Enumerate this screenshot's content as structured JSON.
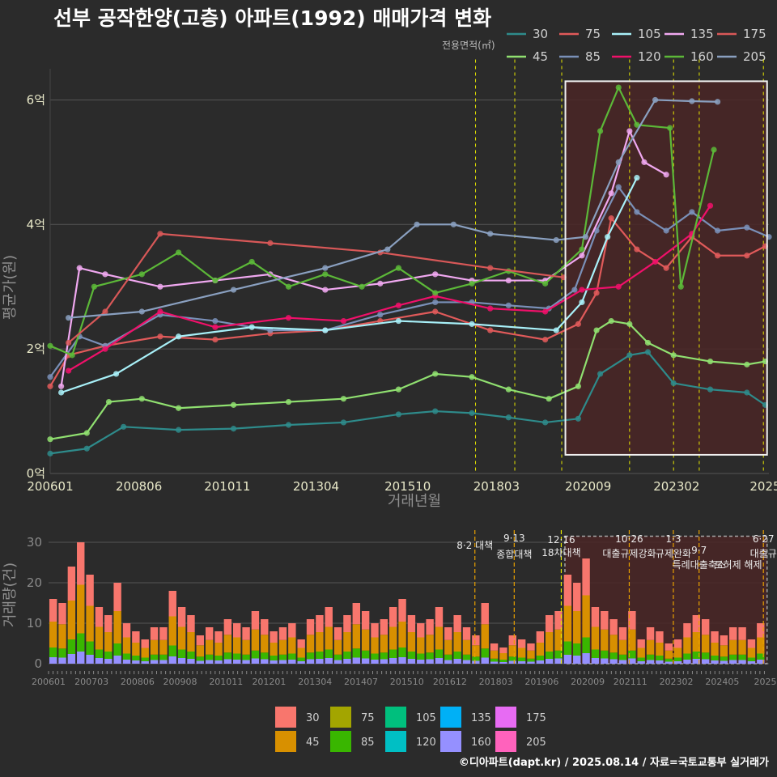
{
  "title": "선부 공작한양(고층) 아파트(1992) 매매가격 변화",
  "footer": "©디아파트(dapt.kr) / 2025.08.14 / 자료=국토교통부 실거래가",
  "chart_data": [
    {
      "type": "line",
      "title": "선부 공작한양(고층) 아파트(1992) 매매가격 변화",
      "xlabel": "거래년월",
      "ylabel": "평균가(원)",
      "ylim": [
        0,
        6.5
      ],
      "xlim": [
        2006.0,
        2025.6
      ],
      "x_tick_labels": [
        "200601",
        "200806",
        "201011",
        "201304",
        "201510",
        "201803",
        "202009",
        "202302",
        "2025"
      ],
      "x_tick_values": [
        2006.0,
        2008.42,
        2010.83,
        2013.25,
        2015.75,
        2018.17,
        2020.67,
        2023.08,
        2025.5
      ],
      "y_tick_labels": [
        "0억",
        "2억",
        "4억",
        "6억"
      ],
      "y_tick_values": [
        0,
        2,
        4,
        6
      ],
      "legend_title": "전용면적(㎡)",
      "legend": [
        "30",
        "75",
        "105",
        "135",
        "175",
        "45",
        "85",
        "120",
        "160",
        "205"
      ],
      "series": [
        {
          "name": "30",
          "color": "#2e8b8b",
          "x": [
            2006.0,
            2007.0,
            2008.0,
            2009.5,
            2011.0,
            2012.5,
            2014.0,
            2015.5,
            2016.5,
            2017.5,
            2018.5,
            2019.5,
            2020.4,
            2021.0,
            2021.8,
            2022.3,
            2023.0,
            2024.0,
            2025.0,
            2025.5
          ],
          "values": [
            0.32,
            0.4,
            0.75,
            0.7,
            0.72,
            0.78,
            0.82,
            0.95,
            1.0,
            0.97,
            0.9,
            0.82,
            0.88,
            1.6,
            1.9,
            1.95,
            1.45,
            1.35,
            1.3,
            1.1
          ]
        },
        {
          "name": "45",
          "color": "#90e070",
          "x": [
            2006.0,
            2007.0,
            2007.6,
            2008.5,
            2009.5,
            2011.0,
            2012.5,
            2014.0,
            2015.5,
            2016.5,
            2017.5,
            2018.5,
            2019.6,
            2020.4,
            2020.9,
            2021.3,
            2021.8,
            2022.3,
            2023.0,
            2024.0,
            2025.0,
            2025.5
          ],
          "values": [
            0.55,
            0.65,
            1.15,
            1.2,
            1.05,
            1.1,
            1.15,
            1.2,
            1.35,
            1.6,
            1.55,
            1.35,
            1.2,
            1.4,
            2.3,
            2.45,
            2.4,
            2.1,
            1.9,
            1.8,
            1.75,
            1.8
          ]
        },
        {
          "name": "75",
          "color": "#e05a5a",
          "x": [
            2006.0,
            2006.5,
            2007.5,
            2009.0,
            2010.5,
            2012.0,
            2013.5,
            2015.0,
            2016.5,
            2018.0,
            2019.5,
            2020.4,
            2020.9,
            2021.3,
            2022.0,
            2022.8,
            2023.5,
            2024.2,
            2025.0,
            2025.5
          ],
          "values": [
            1.4,
            1.9,
            2.05,
            2.2,
            2.15,
            2.25,
            2.3,
            2.45,
            2.6,
            2.3,
            2.15,
            2.4,
            2.9,
            4.1,
            3.6,
            3.3,
            3.8,
            3.5,
            3.5,
            3.65
          ]
        },
        {
          "name": "85",
          "color": "#7a90b8",
          "x": [
            2006.0,
            2006.8,
            2007.5,
            2009.0,
            2010.5,
            2012.0,
            2013.5,
            2015.0,
            2016.5,
            2017.5,
            2018.5,
            2019.6,
            2020.3,
            2020.9,
            2021.5,
            2022.0,
            2022.8,
            2023.5,
            2024.2,
            2025.0,
            2025.6
          ],
          "values": [
            1.55,
            2.2,
            2.05,
            2.55,
            2.45,
            2.3,
            2.3,
            2.55,
            2.75,
            2.75,
            2.7,
            2.65,
            2.95,
            3.9,
            4.6,
            4.2,
            3.9,
            4.2,
            3.9,
            3.95,
            3.8
          ]
        },
        {
          "name": "105",
          "color": "#a8f0f8",
          "x": [
            2006.3,
            2007.8,
            2009.5,
            2011.5,
            2013.5,
            2015.5,
            2017.5,
            2019.8,
            2020.5,
            2021.2,
            2022.0
          ],
          "values": [
            1.3,
            1.6,
            2.2,
            2.35,
            2.3,
            2.45,
            2.4,
            2.3,
            2.75,
            3.8,
            4.75
          ]
        },
        {
          "name": "120",
          "color": "#f0106a",
          "x": [
            2006.5,
            2007.5,
            2009.0,
            2010.5,
            2012.5,
            2014.0,
            2015.5,
            2016.5,
            2018.0,
            2019.5,
            2020.5,
            2021.5,
            2022.5,
            2023.5,
            2024.0
          ],
          "values": [
            1.65,
            2.0,
            2.6,
            2.35,
            2.5,
            2.45,
            2.7,
            2.85,
            2.65,
            2.6,
            2.95,
            3.0,
            3.4,
            3.85,
            4.3
          ]
        },
        {
          "name": "135",
          "color": "#f0a8f0",
          "x": [
            2006.3,
            2006.8,
            2007.5,
            2009.0,
            2010.5,
            2012.0,
            2013.5,
            2015.0,
            2016.5,
            2017.5,
            2018.5,
            2019.5,
            2020.5,
            2021.3,
            2021.8,
            2022.2,
            2022.8
          ],
          "values": [
            1.4,
            3.3,
            3.2,
            3.0,
            3.1,
            3.2,
            2.95,
            3.05,
            3.2,
            3.1,
            3.1,
            3.1,
            3.5,
            4.5,
            5.5,
            5.0,
            4.8
          ]
        },
        {
          "name": "160",
          "color": "#5cb838",
          "x": [
            2006.0,
            2006.6,
            2007.2,
            2008.5,
            2009.5,
            2010.5,
            2011.5,
            2012.5,
            2013.5,
            2014.5,
            2015.5,
            2016.5,
            2017.5,
            2018.5,
            2019.5,
            2020.5,
            2021.0,
            2021.5,
            2022.0,
            2022.9,
            2023.2,
            2024.1
          ],
          "values": [
            2.05,
            1.9,
            3.0,
            3.2,
            3.55,
            3.1,
            3.4,
            3.0,
            3.2,
            3.0,
            3.3,
            2.9,
            3.05,
            3.25,
            3.05,
            3.6,
            5.5,
            6.2,
            5.6,
            5.55,
            3.0,
            5.2
          ]
        },
        {
          "name": "175",
          "color": "#d85858",
          "x": [
            2006.5,
            2007.5,
            2009.0,
            2012.0,
            2015.0,
            2018.0,
            2020.0
          ],
          "values": [
            2.1,
            2.6,
            3.85,
            3.7,
            3.55,
            3.3,
            3.15
          ]
        },
        {
          "name": "205",
          "color": "#8aa0c0",
          "x": [
            2006.5,
            2008.5,
            2011.0,
            2013.5,
            2015.2,
            2016.0,
            2017.0,
            2018.0,
            2019.8,
            2020.6,
            2021.5,
            2022.5,
            2023.5,
            2024.2
          ],
          "values": [
            2.5,
            2.6,
            2.95,
            3.3,
            3.6,
            4.0,
            4.0,
            3.85,
            3.75,
            3.8,
            5.0,
            6.0,
            5.98,
            5.97
          ]
        }
      ]
    },
    {
      "type": "bar",
      "title": "",
      "ylabel": "거래량(건)",
      "ylim": [
        0,
        32
      ],
      "y_tick_labels": [
        "0",
        "10",
        "20",
        "30"
      ],
      "y_tick_values": [
        0,
        10,
        20,
        30
      ],
      "x_tick_labels": [
        "200601",
        "200703",
        "200806",
        "200908",
        "201011",
        "201201",
        "201304",
        "201407",
        "201510",
        "201612",
        "201803",
        "201906",
        "202009",
        "202111",
        "202302",
        "202405",
        "2025"
      ],
      "x_tick_values": [
        2006.0,
        2007.17,
        2008.42,
        2009.58,
        2010.83,
        2012.0,
        2013.25,
        2014.5,
        2015.75,
        2016.92,
        2018.17,
        2019.42,
        2020.67,
        2021.83,
        2023.08,
        2024.33,
        2025.5
      ],
      "legend": [
        "30",
        "45",
        "75",
        "85",
        "105",
        "120",
        "135",
        "160",
        "175",
        "205"
      ],
      "legend_colors": [
        "#f8766d",
        "#d89000",
        "#a3a500",
        "#39b600",
        "#00bf7d",
        "#00bfc4",
        "#00b0f6",
        "#9590ff",
        "#e76bf3",
        "#ff62bc"
      ],
      "categories": [
        "2006-01",
        "2006-04",
        "2006-07",
        "2006-10",
        "2007-01",
        "2007-04",
        "2007-07",
        "2007-10",
        "2008-01",
        "2008-04",
        "2008-07",
        "2008-10",
        "2009-01",
        "2009-04",
        "2009-07",
        "2009-10",
        "2010-01",
        "2010-04",
        "2010-07",
        "2010-10",
        "2011-01",
        "2011-04",
        "2011-07",
        "2011-10",
        "2012-01",
        "2012-04",
        "2012-07",
        "2012-10",
        "2013-01",
        "2013-04",
        "2013-07",
        "2013-10",
        "2014-01",
        "2014-04",
        "2014-07",
        "2014-10",
        "2015-01",
        "2015-04",
        "2015-07",
        "2015-10",
        "2016-01",
        "2016-04",
        "2016-07",
        "2016-10",
        "2017-01",
        "2017-04",
        "2017-07",
        "2017-10",
        "2018-01",
        "2018-04",
        "2018-07",
        "2018-10",
        "2019-01",
        "2019-04",
        "2019-07",
        "2019-10",
        "2020-01",
        "2020-04",
        "2020-07",
        "2020-10",
        "2021-01",
        "2021-04",
        "2021-07",
        "2021-10",
        "2022-01",
        "2022-04",
        "2022-07",
        "2022-10",
        "2023-01",
        "2023-04",
        "2023-07",
        "2023-10",
        "2024-01",
        "2024-04",
        "2024-07",
        "2024-10",
        "2025-01",
        "2025-04"
      ],
      "values": [
        16,
        15,
        24,
        30,
        22,
        14,
        12,
        20,
        10,
        8,
        6,
        9,
        9,
        18,
        14,
        12,
        7,
        9,
        8,
        11,
        10,
        9,
        13,
        11,
        8,
        9,
        10,
        6,
        11,
        12,
        14,
        9,
        12,
        15,
        13,
        10,
        11,
        14,
        16,
        12,
        10,
        11,
        14,
        9,
        12,
        9,
        7,
        15,
        5,
        4,
        7,
        6,
        5,
        8,
        12,
        13,
        22,
        20,
        26,
        14,
        13,
        11,
        9,
        13,
        6,
        9,
        8,
        5,
        6,
        10,
        12,
        11,
        8,
        7,
        9,
        9,
        6,
        10
      ],
      "shaded_range": [
        "202009",
        "2025"
      ]
    }
  ],
  "policy_events": [
    {
      "date": "201708",
      "label_top": "8·2",
      "label_bottom": "대책",
      "x": 2017.6
    },
    {
      "date": "201809",
      "label_top": "9·13",
      "label_bottom": "종합대책",
      "x": 2018.67
    },
    {
      "date": "201912",
      "label_top": "12·16",
      "label_bottom": "18차대책",
      "x": 2019.95
    },
    {
      "date": "202110",
      "label_top": "10·26",
      "label_bottom": "대출규제강화",
      "x": 2021.8
    },
    {
      "date": "202301",
      "label_top": "1·3",
      "label_bottom": "규제완화",
      "x": 2023.0
    },
    {
      "date": "202309",
      "label_top": "9·7",
      "label_bottom": "특례대출축소",
      "x": 2023.7
    },
    {
      "date": "202506",
      "label_top": "6·27",
      "label_bottom": "대출규",
      "x": 2025.45
    }
  ],
  "extra_annotations": [
    "토허제 해제"
  ]
}
